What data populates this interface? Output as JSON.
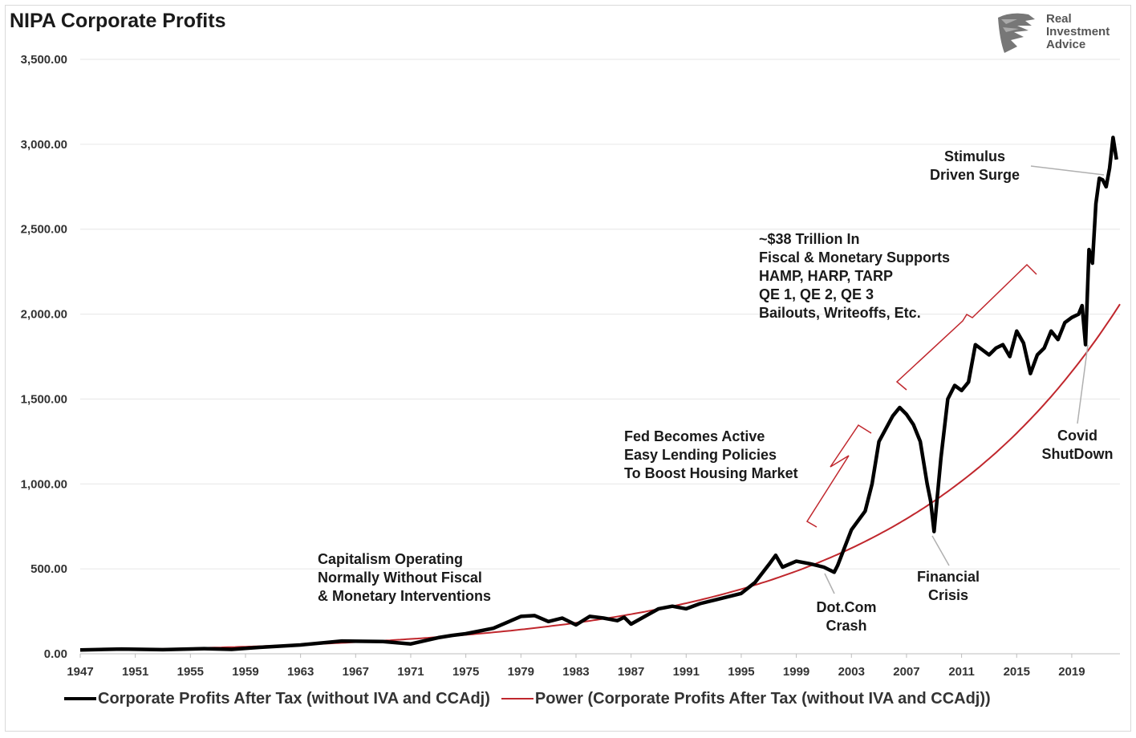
{
  "chart_data": {
    "type": "line",
    "title": "NIPA Corporate Profits",
    "xlabel": "",
    "ylabel": "",
    "xlim": [
      1947,
      2022.5
    ],
    "ylim": [
      0,
      3500
    ],
    "y_ticks": [
      "0.00",
      "500.00",
      "1,000.00",
      "1,500.00",
      "2,000.00",
      "2,500.00",
      "3,000.00",
      "3,500.00"
    ],
    "x_ticks": [
      "1947",
      "1951",
      "1955",
      "1959",
      "1963",
      "1967",
      "1971",
      "1975",
      "1979",
      "1983",
      "1987",
      "1991",
      "1995",
      "1999",
      "2003",
      "2007",
      "2011",
      "2015",
      "2019"
    ],
    "grid": "horizontal",
    "legend_position": "bottom",
    "series": [
      {
        "name": "Corporate Profits After Tax (without IVA and CCAdj)",
        "color": "#000000",
        "x": [
          1947,
          1950,
          1953,
          1956,
          1958,
          1960,
          1963,
          1966,
          1969,
          1971,
          1973,
          1974,
          1975,
          1977,
          1979,
          1980,
          1981,
          1982,
          1983,
          1984,
          1985,
          1986,
          1986.5,
          1987,
          1988,
          1989,
          1990,
          1991,
          1992,
          1993,
          1994,
          1995,
          1996,
          1997,
          1997.5,
          1998,
          1999,
          2000,
          2001,
          2001.75,
          2002,
          2003,
          2004,
          2004.5,
          2005,
          2006,
          2006.5,
          2007,
          2007.5,
          2008,
          2008.5,
          2008.75,
          2009,
          2009.5,
          2010,
          2010.5,
          2011,
          2011.5,
          2012,
          2012.5,
          2013,
          2013.5,
          2014,
          2014.5,
          2015,
          2015.5,
          2016,
          2016.5,
          2017,
          2017.5,
          2018,
          2018.5,
          2019,
          2019.5,
          2019.75,
          2020,
          2020.25,
          2020.5,
          2020.75,
          2021,
          2021.25,
          2021.5,
          2021.75,
          2022,
          2022.25
        ],
        "values": [
          22,
          28,
          24,
          30,
          26,
          38,
          52,
          75,
          72,
          58,
          95,
          108,
          118,
          150,
          220,
          225,
          190,
          210,
          170,
          220,
          210,
          195,
          215,
          175,
          220,
          265,
          280,
          265,
          295,
          315,
          335,
          355,
          420,
          525,
          580,
          510,
          545,
          530,
          510,
          480,
          520,
          730,
          840,
          1000,
          1250,
          1400,
          1450,
          1410,
          1350,
          1250,
          1000,
          900,
          720,
          1150,
          1500,
          1580,
          1550,
          1600,
          1820,
          1790,
          1760,
          1800,
          1820,
          1750,
          1900,
          1830,
          1650,
          1760,
          1800,
          1900,
          1850,
          1950,
          1980,
          2000,
          2050,
          1820,
          2380,
          2300,
          2650,
          2800,
          2790,
          2750,
          2860,
          3040,
          2910
        ]
      },
      {
        "name": "Power (Corporate Profits After Tax (without IVA and CCAdj))",
        "color": "#c0272d",
        "formula": "y = 20 * 1.0633^(x - 1947)"
      }
    ],
    "annotations": [
      {
        "text": [
          "Capitalism Operating",
          "Normally Without Fiscal",
          "& Monetary Interventions"
        ]
      },
      {
        "text": [
          "Fed Becomes Active",
          "Easy Lending Policies",
          "To Boost Housing Market"
        ]
      },
      {
        "text": [
          "~$38 Trillion In",
          "Fiscal & Monetary Supports",
          "HAMP, HARP, TARP",
          "QE 1, QE 2, QE 3",
          "Bailouts, Writeoffs, Etc."
        ]
      },
      {
        "text": [
          "Stimulus",
          "Driven Surge"
        ]
      },
      {
        "text": [
          "Dot.Com",
          "Crash"
        ]
      },
      {
        "text": [
          "Financial",
          "Crisis"
        ]
      },
      {
        "text": [
          "Covid",
          "ShutDown"
        ]
      }
    ]
  },
  "logo": {
    "lines": [
      "Real",
      "Investment",
      "Advice"
    ],
    "icon": "eagle-head-icon"
  }
}
